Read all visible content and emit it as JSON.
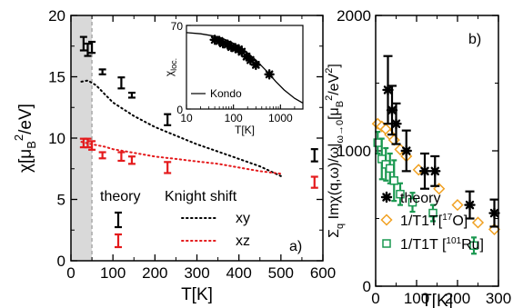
{
  "chart_data": [
    {
      "type": "scatter",
      "panel_label": "a)",
      "xlabel": "T[K]",
      "ylabel": "χ[μ_B²/eV]",
      "ylabel_parts": {
        "base": "χ[μ",
        "sub": "B",
        "sup": "2",
        "tail": "/eV]"
      },
      "xlim": [
        0,
        600
      ],
      "ylim": [
        0,
        20
      ],
      "xticks": [
        "0",
        "100",
        "200",
        "300",
        "400",
        "500",
        "600"
      ],
      "yticks": [
        "0",
        "5",
        "10",
        "15",
        "20"
      ],
      "shaded_region": [
        0,
        50
      ],
      "legend": {
        "theory": "theory",
        "knight": "Knight shift",
        "xy": "xy",
        "xz": "xz"
      },
      "series": [
        {
          "kind": "errorbar",
          "color": "#000000",
          "x": [
            30,
            40,
            50,
            75,
            120,
            145,
            230,
            580
          ],
          "y": [
            17.7,
            17.2,
            17.4,
            15.4,
            14.5,
            13.5,
            11.5,
            8.6
          ],
          "err": [
            0.55,
            0.5,
            0.45,
            0.2,
            0.45,
            0.2,
            0.45,
            0.5
          ]
        },
        {
          "kind": "errorbar",
          "color": "#e41a1c",
          "x": [
            30,
            40,
            50,
            75,
            120,
            145,
            230,
            580
          ],
          "y": [
            9.6,
            9.6,
            9.4,
            8.6,
            8.5,
            8.2,
            7.6,
            6.4
          ],
          "err": [
            0.35,
            0.35,
            0.35,
            0.25,
            0.35,
            0.3,
            0.45,
            0.45
          ]
        },
        {
          "kind": "dotted",
          "color": "#000000",
          "x": [
            25,
            40,
            60,
            80,
            100,
            150,
            200,
            250,
            300,
            350,
            400,
            450,
            500
          ],
          "y": [
            14.6,
            14.7,
            14.3,
            13.6,
            12.9,
            11.8,
            10.9,
            10.2,
            9.5,
            8.9,
            8.3,
            7.7,
            6.9
          ]
        },
        {
          "kind": "dotted",
          "color": "#e41a1c",
          "x": [
            25,
            50,
            80,
            100,
            150,
            200,
            250,
            300,
            350,
            400,
            450,
            500
          ],
          "y": [
            9.7,
            9.5,
            9.3,
            9.1,
            8.8,
            8.5,
            8.3,
            8.1,
            7.9,
            7.6,
            7.3,
            7.1
          ]
        }
      ],
      "inset": {
        "type": "scatter",
        "xscale": "log",
        "xlim": [
          10,
          3000
        ],
        "ylim": [
          0,
          70
        ],
        "xticks": [
          "10",
          "100",
          "1000"
        ],
        "yticks": [
          "0",
          "70"
        ],
        "xlabel": "T[K]",
        "ylabel": "χ",
        "ylabel_sub": "loc.",
        "legend": "Kondo",
        "points": {
          "x": [
            40,
            50,
            60,
            75,
            90,
            110,
            130,
            150,
            190,
            230,
            300,
            580
          ],
          "y": [
            58,
            57,
            55,
            54,
            52,
            51,
            50,
            48,
            44,
            41,
            37,
            29
          ]
        },
        "curve": {
          "x": [
            10,
            20,
            40,
            60,
            100,
            150,
            200,
            300,
            500,
            800,
            1200,
            2000,
            3000
          ],
          "y": [
            64,
            63,
            61,
            59,
            55,
            51,
            47,
            41,
            32,
            23,
            16,
            9,
            5
          ]
        }
      }
    },
    {
      "type": "scatter",
      "panel_label": "b)",
      "xlabel": "T[K]",
      "ylabel": "Σ_q Imχ(q,ω)/ω|_{ω→0}[μ_B²/eV²]",
      "ylabel_parts": {
        "sigma": "Σ",
        "sub_q": "q",
        "mid": " Imχ(q,ω)/ω|",
        "sub_w": "ω→0",
        "open": "[μ",
        "sub_b": "B",
        "sup2": "2",
        "tail": "/eV",
        "sup2b": "2",
        "close": "]"
      },
      "xlim": [
        0,
        300
      ],
      "ylim": [
        0,
        2000
      ],
      "xticks": [
        "0",
        "100",
        "200",
        "300"
      ],
      "yticks": [
        "0",
        "1000",
        "2000"
      ],
      "legend": [
        {
          "label": "theory"
        },
        {
          "label": "1/T1T[",
          "sup": "17",
          "tail": "O]"
        },
        {
          "label": "1/T1T [",
          "sup": "101",
          "tail": "Ru]"
        }
      ],
      "series": [
        {
          "kind": "theory",
          "color": "#000000",
          "x": [
            30,
            40,
            50,
            75,
            120,
            145,
            230,
            290
          ],
          "y": [
            1450,
            1300,
            1200,
            1000,
            850,
            850,
            600,
            540
          ],
          "err": [
            250,
            180,
            150,
            150,
            130,
            110,
            100,
            100
          ]
        },
        {
          "kind": "diamond",
          "color": "#f0a020",
          "x": [
            5,
            15,
            25,
            35,
            45,
            60,
            75,
            105,
            155,
            200,
            250,
            290
          ],
          "y": [
            1200,
            1180,
            1160,
            1120,
            1080,
            1010,
            960,
            860,
            720,
            600,
            470,
            420
          ]
        },
        {
          "kind": "square",
          "color": "#1a9850",
          "x": [
            5,
            15,
            25,
            35,
            45,
            60,
            90,
            140,
            240
          ],
          "y": [
            1060,
            940,
            900,
            870,
            780,
            680,
            620,
            540,
            300
          ],
          "err": [
            80,
            150,
            120,
            110,
            150,
            80,
            70,
            60,
            60
          ]
        }
      ]
    }
  ]
}
